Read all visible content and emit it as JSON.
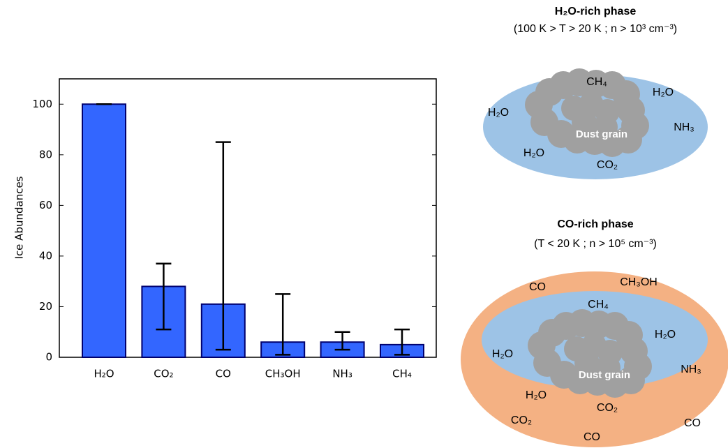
{
  "chart_data": {
    "type": "bar",
    "ylabel": "Ice Abundances",
    "categories": [
      "H₂O",
      "CO₂",
      "CO",
      "CH₃OH",
      "NH₃",
      "CH₄"
    ],
    "values": [
      100,
      28,
      21,
      6,
      6,
      5
    ],
    "error_low": [
      100,
      11,
      3,
      1,
      3,
      1
    ],
    "error_high": [
      100,
      37,
      85,
      25,
      10,
      11
    ],
    "color": "#3366ff",
    "ylim": [
      0,
      110
    ],
    "yticks": [
      0,
      20,
      40,
      60,
      80,
      100
    ]
  },
  "diagram": {
    "panels": [
      {
        "title": "H₂O-rich phase",
        "conditions": "(100 K > T > 20 K ; n > 10³ cm⁻³)",
        "core": "Dust grain",
        "inner": [
          "CH₄",
          "H₂O",
          "H₂O",
          "NH₃",
          "H₂O",
          "CO₂"
        ]
      },
      {
        "title": "CO-rich phase",
        "conditions": "(T < 20 K ; n > 10⁵ cm⁻³)",
        "core": "Dust grain",
        "inner": [
          "CH₄",
          "H₂O",
          "H₂O",
          "NH₃",
          "H₂O",
          "CO₂"
        ],
        "outer": [
          "CO",
          "CH₃OH",
          "CO",
          "CO₂",
          "CO"
        ]
      }
    ]
  }
}
